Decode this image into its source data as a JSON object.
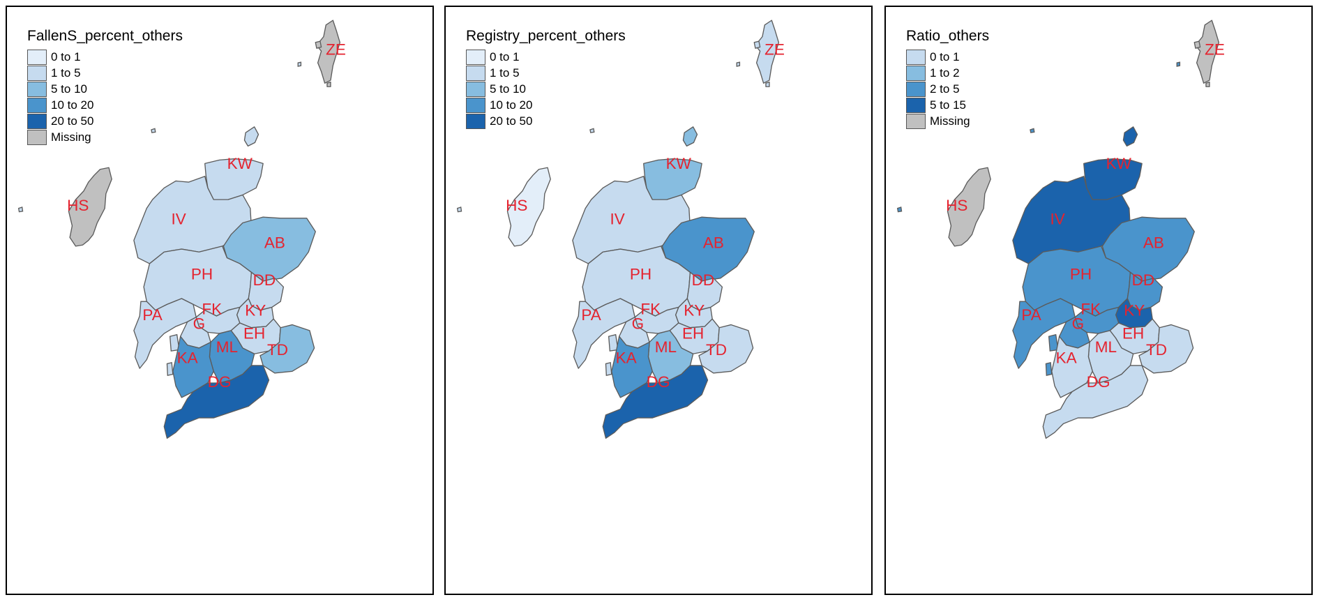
{
  "colors": {
    "c0": "#e3eef9",
    "c1": "#c6dbef",
    "c2": "#87bde0",
    "c3": "#4a94cc",
    "c4": "#1b63ac",
    "missing": "#c0c0c0"
  },
  "panels": [
    {
      "legend_title": "FallenS_percent_others",
      "legend": [
        {
          "label": "0 to 1",
          "color": "c0"
        },
        {
          "label": "1 to 5",
          "color": "c1"
        },
        {
          "label": "5 to 10",
          "color": "c2"
        },
        {
          "label": "10 to 20",
          "color": "c3"
        },
        {
          "label": "20 to 50",
          "color": "c4"
        },
        {
          "label": "Missing",
          "color": "missing"
        }
      ],
      "fills": {
        "ZE": "missing",
        "HS": "missing",
        "KW": "c1",
        "IV": "c1",
        "AB": "c2",
        "PH": "c1",
        "DD": "c1",
        "KY": "c1",
        "FK": "c1",
        "PA": "c1",
        "G": "c1",
        "EH": "c1",
        "TD": "c2",
        "ML": "c3",
        "KA": "c3",
        "DG": "c4"
      }
    },
    {
      "legend_title": "Registry_percent_others",
      "legend": [
        {
          "label": "0 to 1",
          "color": "c0"
        },
        {
          "label": "1 to 5",
          "color": "c1"
        },
        {
          "label": "5 to 10",
          "color": "c2"
        },
        {
          "label": "10 to 20",
          "color": "c3"
        },
        {
          "label": "20 to 50",
          "color": "c4"
        }
      ],
      "fills": {
        "ZE": "c1",
        "HS": "c0",
        "KW": "c2",
        "IV": "c1",
        "AB": "c3",
        "PH": "c1",
        "DD": "c1",
        "KY": "c1",
        "FK": "c1",
        "PA": "c1",
        "G": "c1",
        "EH": "c1",
        "TD": "c1",
        "ML": "c2",
        "KA": "c3",
        "DG": "c4"
      }
    },
    {
      "legend_title": "Ratio_others",
      "legend": [
        {
          "label": "0 to 1",
          "color": "c1"
        },
        {
          "label": "1 to 2",
          "color": "c2"
        },
        {
          "label": "2 to 5",
          "color": "c3"
        },
        {
          "label": "5 to 15",
          "color": "c4"
        },
        {
          "label": "Missing",
          "color": "missing"
        }
      ],
      "fills": {
        "ZE": "missing",
        "HS": "missing",
        "KW": "c4",
        "IV": "c4",
        "AB": "c3",
        "PH": "c3",
        "DD": "c3",
        "KY": "c4",
        "FK": "c3",
        "PA": "c3",
        "G": "c3",
        "EH": "c1",
        "TD": "c1",
        "ML": "c1",
        "KA": "c1",
        "DG": "c1"
      }
    }
  ],
  "regions": [
    "ZE",
    "HS",
    "KW",
    "IV",
    "AB",
    "PH",
    "DD",
    "KY",
    "FK",
    "PA",
    "G",
    "EH",
    "TD",
    "ML",
    "KA",
    "DG"
  ]
}
